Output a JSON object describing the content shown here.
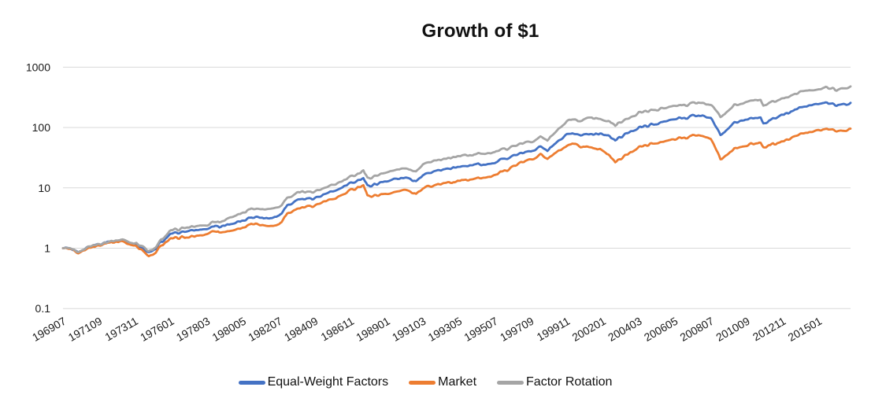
{
  "title": "Growth of $1",
  "colors": {
    "equal_weight": "#4472C4",
    "market": "#ED7D31",
    "factor_rotation": "#A5A5A5",
    "gridline": "#D9D9D9",
    "axis_text": "#1A1A1A",
    "title_text": "#111111",
    "background": "#FFFFFF"
  },
  "legend": {
    "items": [
      {
        "label": "Equal-Weight Factors",
        "color": "#4472C4"
      },
      {
        "label": "Market",
        "color": "#ED7D31"
      },
      {
        "label": "Factor Rotation",
        "color": "#A5A5A5"
      }
    ]
  },
  "chart_data": {
    "type": "line",
    "title": "Growth of $1",
    "xlabel": "",
    "ylabel": "",
    "grid": "horizontal",
    "legend_position": "bottom",
    "x_axis": {
      "unit": "month (YYYYMM)",
      "start": "196907",
      "end": "201612",
      "months_total": 569,
      "tick_interval_months": 26,
      "tick_labels": [
        "196907",
        "197109",
        "197311",
        "197601",
        "197803",
        "198005",
        "198207",
        "198409",
        "198611",
        "198901",
        "199103",
        "199305",
        "199507",
        "199709",
        "199911",
        "200201",
        "200403",
        "200605",
        "200807",
        "201009",
        "201211",
        "201501"
      ]
    },
    "y_axis": {
      "scale": "log10",
      "ticks": [
        1000,
        100,
        10,
        1,
        0.1
      ],
      "tick_labels": [
        "1000",
        "100",
        "10",
        "1",
        "0.1"
      ],
      "range": [
        0.1,
        1000
      ]
    },
    "anchor_months": [
      0,
      5,
      11,
      18,
      26,
      32,
      42,
      52,
      56,
      62,
      65,
      71,
      78,
      90,
      104,
      110,
      113,
      120,
      130,
      136,
      147,
      156,
      162,
      170,
      182,
      195,
      208,
      217,
      220,
      234,
      247,
      255,
      260,
      286,
      312,
      324,
      338,
      345,
      350,
      364,
      368,
      372,
      382,
      390,
      399,
      416,
      442,
      459,
      468,
      475,
      485,
      494,
      504,
      506,
      520,
      533,
      546,
      552,
      559,
      569
    ],
    "series": [
      {
        "name": "Equal-Weight Factors",
        "color": "#4472C4",
        "values": [
          1.0,
          0.96,
          0.85,
          1.04,
          1.17,
          1.27,
          1.36,
          1.18,
          1.05,
          0.84,
          0.88,
          1.28,
          1.68,
          1.92,
          2.08,
          2.42,
          2.25,
          2.5,
          2.75,
          3.3,
          3.2,
          3.4,
          5.2,
          6.4,
          6.8,
          8.6,
          11.8,
          14.8,
          10.6,
          13.0,
          14.8,
          13.2,
          16.7,
          22.6,
          26.0,
          33.0,
          41.0,
          48.0,
          42.0,
          75.0,
          78.0,
          73.0,
          80.0,
          79.0,
          62.0,
          100,
          137,
          158,
          145,
          74.0,
          118,
          137,
          150,
          118,
          162,
          215,
          245,
          255,
          232,
          257
        ]
      },
      {
        "name": "Market",
        "color": "#ED7D31",
        "values": [
          1.0,
          0.95,
          0.82,
          1.01,
          1.12,
          1.22,
          1.3,
          1.1,
          0.98,
          0.72,
          0.76,
          1.1,
          1.43,
          1.52,
          1.72,
          1.98,
          1.83,
          1.95,
          2.1,
          2.6,
          2.35,
          2.5,
          3.8,
          4.6,
          5.2,
          6.4,
          9.0,
          11.2,
          7.3,
          8.0,
          9.3,
          8.0,
          10.1,
          13.0,
          16.0,
          22.0,
          30.5,
          36.0,
          31.0,
          48.0,
          52.0,
          49.0,
          47.0,
          43.0,
          26.5,
          48.0,
          64.0,
          75.0,
          66.0,
          29.5,
          44.0,
          51.0,
          57.0,
          48.0,
          58.0,
          78.0,
          90.0,
          94.0,
          86.0,
          96.0
        ]
      },
      {
        "name": "Factor Rotation",
        "color": "#A5A5A5",
        "values": [
          1.0,
          0.97,
          0.85,
          1.05,
          1.18,
          1.28,
          1.38,
          1.22,
          1.12,
          0.88,
          0.92,
          1.35,
          1.95,
          2.2,
          2.4,
          2.85,
          2.65,
          3.2,
          3.8,
          4.6,
          4.5,
          4.8,
          6.9,
          8.5,
          8.7,
          11.0,
          15.1,
          19.5,
          14.2,
          18.5,
          21.0,
          19.0,
          25.0,
          33.7,
          39.0,
          48.0,
          58.5,
          70.0,
          62.0,
          124,
          135,
          125,
          150,
          137,
          108,
          176,
          225,
          262,
          240,
          148,
          230,
          265,
          290,
          237,
          300,
          390,
          430,
          455,
          420,
          480
        ]
      }
    ]
  }
}
